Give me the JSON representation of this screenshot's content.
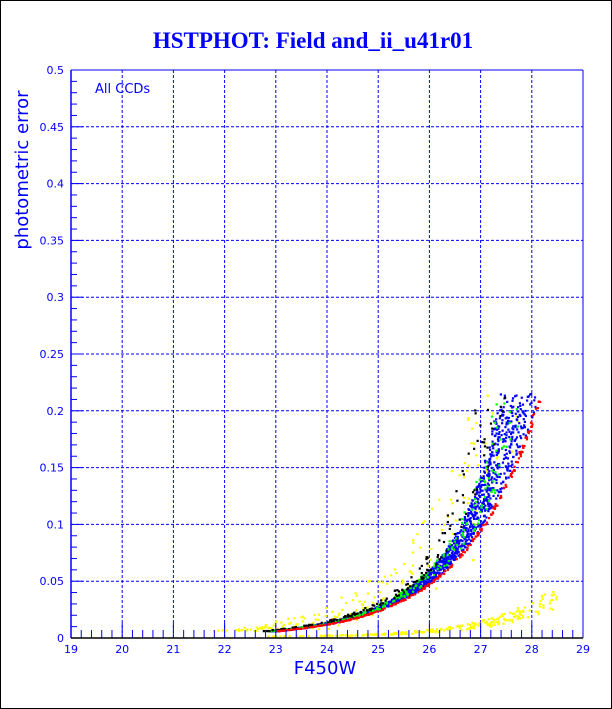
{
  "chart_data": {
    "type": "scatter",
    "title": "HSTPHOT: Field and_ii_u41r01",
    "xlabel": "F450W",
    "ylabel": "photometric error",
    "annotation": "All CCDs",
    "xlim": [
      19,
      29
    ],
    "ylim": [
      0,
      0.5
    ],
    "x_ticks": [
      "19",
      "20",
      "21",
      "22",
      "23",
      "24",
      "25",
      "26",
      "27",
      "28",
      "29"
    ],
    "y_ticks": [
      "0",
      "0.05",
      "0.1",
      "0.15",
      "0.2",
      "0.25",
      "0.3",
      "0.35",
      "0.4",
      "0.45",
      "0.5"
    ],
    "grid": true,
    "error_cutoff": 0.215,
    "main_sequence_edge": {
      "x": [
        22.9,
        24,
        25,
        26,
        27,
        27.5,
        28,
        28.25
      ],
      "y": [
        0.006,
        0.012,
        0.024,
        0.048,
        0.096,
        0.136,
        0.192,
        0.215
      ]
    },
    "secondary_sequence": {
      "x": [
        22.5,
        24,
        25,
        26,
        27,
        27.5,
        28,
        28.5
      ],
      "y": [
        0.001,
        0.001,
        0.003,
        0.005,
        0.011,
        0.016,
        0.024,
        0.036
      ]
    },
    "series": [
      {
        "name": "blue",
        "color": "#0000ff",
        "count": 1800
      },
      {
        "name": "red",
        "color": "#ff0000",
        "count": 260
      },
      {
        "name": "green",
        "color": "#00ff00",
        "count": 260
      },
      {
        "name": "black",
        "color": "#000000",
        "count": 170
      },
      {
        "name": "yellow",
        "color": "#ffff00",
        "count": 420
      }
    ]
  }
}
